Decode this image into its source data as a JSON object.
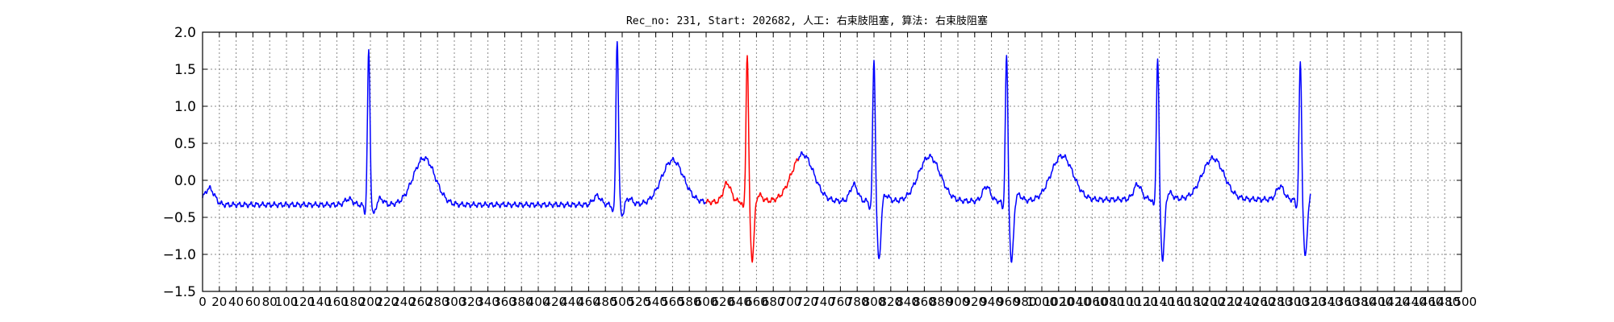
{
  "chart_data": {
    "type": "line",
    "title": "Rec_no: 231, Start: 202682, 人工: 右束肢阻塞, 算法: 右束肢阻塞",
    "xlabel": "",
    "ylabel": "",
    "xlim": [
      0,
      1500
    ],
    "ylim": [
      -1.5,
      2.0
    ],
    "yticks": [
      2.0,
      1.5,
      1.0,
      0.5,
      0.0,
      -0.5,
      -1.0,
      -1.5
    ],
    "ytick_labels": [
      "2.0",
      "1.5",
      "1.0",
      "0.5",
      "0.0",
      "−0.5",
      "−1.0",
      "−1.5"
    ],
    "xticks": [
      0,
      20,
      40,
      60,
      80,
      100,
      120,
      140,
      160,
      180,
      200,
      220,
      240,
      260,
      280,
      300,
      320,
      340,
      360,
      380,
      400,
      420,
      440,
      460,
      480,
      500,
      520,
      540,
      560,
      580,
      600,
      620,
      640,
      660,
      680,
      700,
      720,
      740,
      760,
      780,
      800,
      820,
      840,
      860,
      880,
      900,
      920,
      940,
      960,
      980,
      1000,
      1020,
      1040,
      1060,
      1080,
      1100,
      1120,
      1140,
      1160,
      1180,
      1200,
      1220,
      1240,
      1260,
      1280,
      1300,
      1320,
      1340,
      1360,
      1380,
      1400,
      1420,
      1440,
      1460,
      1480,
      1500
    ],
    "xtick_labels": [
      "0",
      "20",
      "40",
      "60",
      "80",
      "100",
      "120",
      "140",
      "160",
      "180",
      "200",
      "220",
      "240",
      "260",
      "280",
      "300",
      "320",
      "340",
      "360",
      "380",
      "400",
      "420",
      "440",
      "460",
      "480",
      "500",
      "520",
      "540",
      "560",
      "580",
      "600",
      "620",
      "640",
      "660",
      "680",
      "700",
      "720",
      "740",
      "760",
      "780",
      "800",
      "820",
      "840",
      "860",
      "880",
      "900",
      "920",
      "940",
      "960",
      "980",
      "1000",
      "1020",
      "1040",
      "1060",
      "1080",
      "1100",
      "1120",
      "1140",
      "1160",
      "1180",
      "1200",
      "1220",
      "1240",
      "1260",
      "1280",
      "1300",
      "1320",
      "1340",
      "1360",
      "1380",
      "1400",
      "1420",
      "1440",
      "1460",
      "1480",
      "1500"
    ],
    "grid": true,
    "colors": {
      "normal": "#0000ff",
      "highlight": "#ff0000"
    },
    "beats": [
      {
        "r": 198,
        "rAmp": 1.63,
        "sAmp": -0.47,
        "pAmp": 0.08,
        "tAmp": 0.63,
        "base": -0.33
      },
      {
        "r": 494,
        "rAmp": 1.8,
        "sAmp": -0.48,
        "pAmp": 0.12,
        "tAmp": 0.58,
        "base": -0.33
      },
      {
        "r": 649,
        "rAmp": 1.6,
        "sAmp": -1.08,
        "pAmp": 0.25,
        "tAmp": 0.63,
        "base": -0.28
      },
      {
        "r": 800,
        "rAmp": 1.55,
        "sAmp": -1.08,
        "pAmp": 0.22,
        "tAmp": 0.6,
        "base": -0.28
      },
      {
        "r": 958,
        "rAmp": 1.58,
        "sAmp": -1.12,
        "pAmp": 0.2,
        "tAmp": 0.6,
        "base": -0.28
      },
      {
        "r": 1138,
        "rAmp": 1.55,
        "sAmp": -1.07,
        "pAmp": 0.2,
        "tAmp": 0.55,
        "base": -0.25
      },
      {
        "r": 1308,
        "rAmp": 1.5,
        "sAmp": -1.05,
        "pAmp": 0.18,
        "tAmp": 0.58,
        "base": -0.26
      }
    ],
    "signal_range": [
      0,
      1320
    ],
    "highlight_range": [
      600,
      710
    ]
  }
}
